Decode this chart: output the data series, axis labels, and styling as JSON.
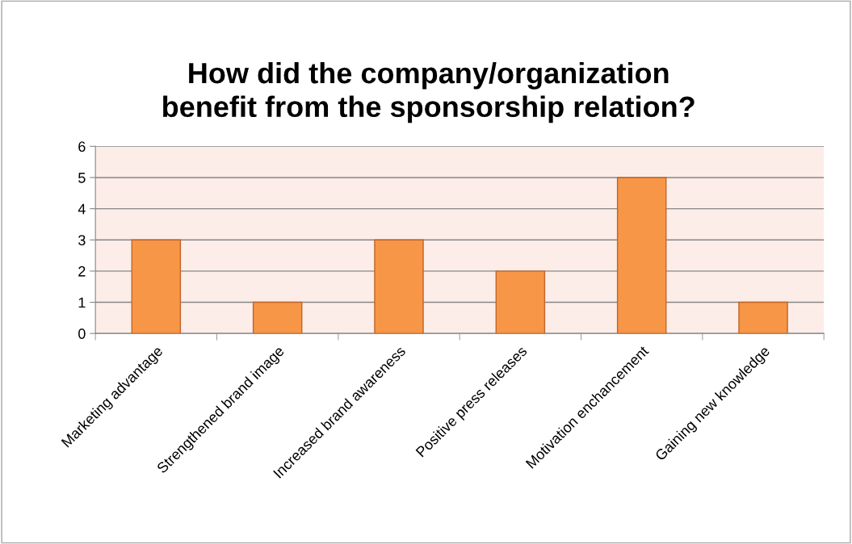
{
  "chart_data": {
    "type": "bar",
    "title": "How did the company/organization\nbenefit from the sponsorship relation?",
    "categories": [
      "Marketing advantage",
      "Strengthened brand image",
      "Increased brand awareness",
      "Positive press releases",
      "Motivation enchancement",
      "Gaining new knowledge"
    ],
    "values": [
      3,
      1,
      3,
      2,
      5,
      1
    ],
    "color": "#f79646",
    "ylim": [
      0,
      6
    ],
    "yticks": [
      0,
      1,
      2,
      3,
      4,
      5,
      6
    ],
    "grid": "y",
    "legend": false
  }
}
